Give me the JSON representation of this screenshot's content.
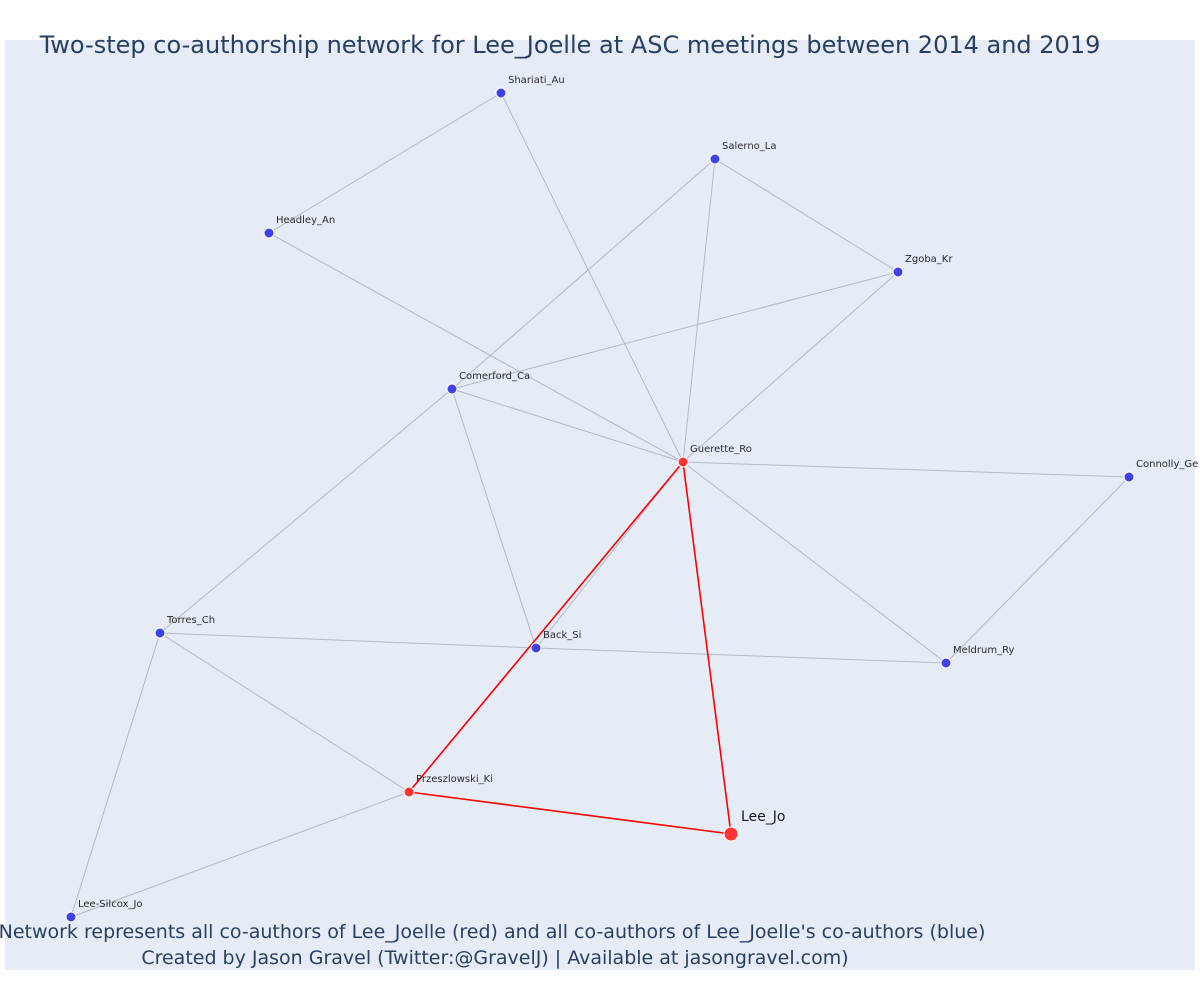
{
  "title": "Two-step co-authorship network for Lee_Joelle at ASC meetings between 2014 and 2019",
  "caption": {
    "line1": "Network represents all co-authors of Lee_Joelle (red) and all co-authors of Lee_Joelle's co-authors (blue)",
    "line2": "Created by Jason Gravel (Twitter:@GravelJ) | Available at jasongravel.com)"
  },
  "colors": {
    "background": "#e5ecf6",
    "focal_edge": "#ff0000",
    "other_edge": "#b3b8c8",
    "coauthor_node": "#ff3333",
    "second_step_node": "#4040e6",
    "node_outline": "#ffffff"
  },
  "nodes": [
    {
      "id": "Lee_Jo",
      "label": "Lee_Jo",
      "group": "focal"
    },
    {
      "id": "Guerette_Ro",
      "label": "Guerette_Ro",
      "group": "coauthor"
    },
    {
      "id": "Przeszlowski_Ki",
      "label": "Przeszlowski_Ki",
      "group": "coauthor"
    },
    {
      "id": "Shariati_Au",
      "label": "Shariati_Au",
      "group": "second"
    },
    {
      "id": "Salerno_La",
      "label": "Salerno_La",
      "group": "second"
    },
    {
      "id": "Headley_An",
      "label": "Headley_An",
      "group": "second"
    },
    {
      "id": "Zgoba_Kr",
      "label": "Zgoba_Kr",
      "group": "second"
    },
    {
      "id": "Comerford_Ca",
      "label": "Comerford_Ca",
      "group": "second"
    },
    {
      "id": "Connolly_Ge",
      "label": "Connolly_Ge",
      "group": "second"
    },
    {
      "id": "Torres_Ch",
      "label": "Torres_Ch",
      "group": "second"
    },
    {
      "id": "Back_Si",
      "label": "Back_Si",
      "group": "second"
    },
    {
      "id": "Meldrum_Ry",
      "label": "Meldrum_Ry",
      "group": "second"
    },
    {
      "id": "Lee-Silcox_Jo",
      "label": "Lee-Silcox_Jo",
      "group": "second"
    }
  ],
  "edges": [
    {
      "source": "Lee_Jo",
      "target": "Guerette_Ro",
      "focal": true
    },
    {
      "source": "Lee_Jo",
      "target": "Przeszlowski_Ki",
      "focal": true
    },
    {
      "source": "Przeszlowski_Ki",
      "target": "Guerette_Ro",
      "focal": true
    },
    {
      "source": "Shariati_Au",
      "target": "Headley_An",
      "focal": false
    },
    {
      "source": "Shariati_Au",
      "target": "Guerette_Ro",
      "focal": false
    },
    {
      "source": "Salerno_La",
      "target": "Zgoba_Kr",
      "focal": false
    },
    {
      "source": "Salerno_La",
      "target": "Comerford_Ca",
      "focal": false
    },
    {
      "source": "Salerno_La",
      "target": "Guerette_Ro",
      "focal": false
    },
    {
      "source": "Headley_An",
      "target": "Guerette_Ro",
      "focal": false
    },
    {
      "source": "Zgoba_Kr",
      "target": "Comerford_Ca",
      "focal": false
    },
    {
      "source": "Zgoba_Kr",
      "target": "Guerette_Ro",
      "focal": false
    },
    {
      "source": "Comerford_Ca",
      "target": "Guerette_Ro",
      "focal": false
    },
    {
      "source": "Comerford_Ca",
      "target": "Back_Si",
      "focal": false
    },
    {
      "source": "Comerford_Ca",
      "target": "Torres_Ch",
      "focal": false
    },
    {
      "source": "Guerette_Ro",
      "target": "Connolly_Ge",
      "focal": false
    },
    {
      "source": "Guerette_Ro",
      "target": "Meldrum_Ry",
      "focal": false
    },
    {
      "source": "Guerette_Ro",
      "target": "Back_Si",
      "focal": false
    },
    {
      "source": "Connolly_Ge",
      "target": "Meldrum_Ry",
      "focal": false
    },
    {
      "source": "Torres_Ch",
      "target": "Back_Si",
      "focal": false
    },
    {
      "source": "Back_Si",
      "target": "Meldrum_Ry",
      "focal": false
    },
    {
      "source": "Torres_Ch",
      "target": "Przeszlowski_Ki",
      "focal": false
    },
    {
      "source": "Torres_Ch",
      "target": "Lee-Silcox_Jo",
      "focal": false
    },
    {
      "source": "Przeszlowski_Ki",
      "target": "Lee-Silcox_Jo",
      "focal": false
    }
  ]
}
